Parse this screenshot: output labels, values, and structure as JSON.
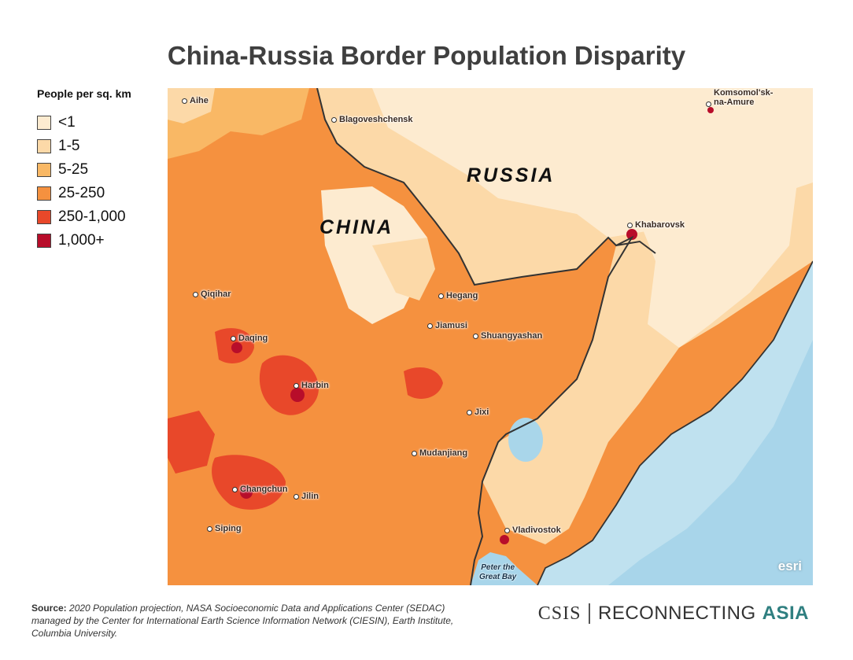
{
  "title": "China-Russia Border Population Disparity",
  "legend": {
    "title": "People per sq. km",
    "items": [
      {
        "label": "<1",
        "color": "#fdebd0"
      },
      {
        "label": "1-5",
        "color": "#fcd9a8"
      },
      {
        "label": "5-25",
        "color": "#f9b865"
      },
      {
        "label": "25-250",
        "color": "#f5913f"
      },
      {
        "label": "250-1,000",
        "color": "#e8482a"
      },
      {
        "label": "1,000+",
        "color": "#b80d2a"
      }
    ]
  },
  "map": {
    "countries": {
      "china": "CHINA",
      "russia": "RUSSIA"
    },
    "cities": {
      "aihe": "Aihe",
      "blagoveshchensk": "Blagoveshchensk",
      "komsomolsk": "Komsomol'sk-\nna-Amure",
      "khabarovsk": "Khabarovsk",
      "qiqihar": "Qiqihar",
      "hegang": "Hegang",
      "jiamusi": "Jiamusi",
      "shuangyashan": "Shuangyashan",
      "daqing": "Daqing",
      "harbin": "Harbin",
      "jixi": "Jixi",
      "mudanjiang": "Mudanjiang",
      "changchun": "Changchun",
      "jilin": "Jilin",
      "siping": "Siping",
      "vladivostok": "Vladivostok"
    },
    "water": {
      "peter_great_bay": "Peter the\nGreat Bay"
    },
    "attribution": "esri"
  },
  "source": {
    "label": "Source:",
    "text": "2020 Population projection, NASA Socioeconomic Data and Applications Center (SEDAC) managed by the Center for International Earth Science Information Network (CIESIN), Earth Institute, Columbia University."
  },
  "logo": {
    "csis": "CSIS",
    "reconnecting": "RECONNECTING",
    "asia": "ASIA"
  }
}
